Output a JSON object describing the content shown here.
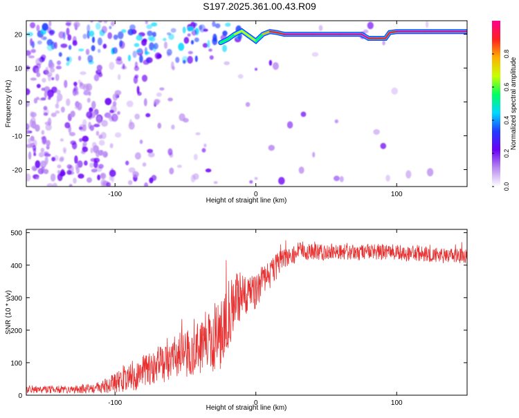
{
  "title": "S197.2025.361.00.43.R09",
  "chart_data": [
    {
      "type": "heatmap",
      "name": "spectrogram",
      "xlabel": "Height of straight line (km)",
      "ylabel": "Frequency (Hz)",
      "xlim": [
        -163,
        150
      ],
      "ylim": [
        -25,
        24
      ],
      "xticks": [
        -100,
        0,
        100
      ],
      "xtick_labels": [
        "-100",
        "0",
        "100"
      ],
      "yticks": [
        -20,
        -10,
        0,
        10,
        20
      ],
      "ytick_labels": [
        "-20",
        "-10",
        "0",
        "10",
        "20"
      ],
      "colorbar": {
        "label": "Normalized spectral amplitude",
        "range": [
          0,
          1
        ],
        "ticks": [
          0,
          0.2,
          0.4,
          0.6,
          0.8
        ],
        "tick_labels": [
          "0.0",
          "0.2",
          "0.4",
          "0.6",
          "0.8"
        ],
        "colors": [
          "#ffffff",
          "#b98bf0",
          "#6a00f5",
          "#1f3cff",
          "#00d8ff",
          "#00ff60",
          "#c8ff00",
          "#ffb000",
          "#ff2020",
          "#ff0090"
        ]
      },
      "carrier_trace": {
        "x": [
          -50,
          -40,
          -30,
          -25,
          -20,
          -15,
          -10,
          -5,
          0,
          5,
          10,
          15,
          20,
          40,
          60,
          75,
          80,
          85,
          92,
          95,
          100,
          120,
          140,
          150
        ],
        "y": [
          16,
          16.5,
          17,
          17.5,
          18.5,
          20,
          21,
          19.5,
          18,
          20,
          20.8,
          20.5,
          20,
          20,
          20,
          20,
          18.8,
          18.8,
          18.8,
          20.5,
          20.8,
          20.8,
          20.8,
          20.8
        ],
        "amplitude": [
          0.45,
          0.5,
          0.5,
          0.55,
          0.6,
          0.65,
          0.7,
          0.65,
          0.6,
          0.75,
          0.85,
          0.9,
          0.95,
          0.95,
          0.95,
          0.95,
          0.9,
          0.85,
          0.85,
          0.9,
          0.95,
          0.95,
          0.95,
          0.95
        ]
      }
    },
    {
      "type": "line",
      "name": "snr",
      "xlabel": "Height of straight line (km)",
      "ylabel": "SNR (10 * v/v)",
      "xlim": [
        -163,
        150
      ],
      "ylim": [
        0,
        510
      ],
      "xticks": [
        -100,
        0,
        100
      ],
      "xtick_labels": [
        "-100",
        "0",
        "100"
      ],
      "yticks": [
        0,
        100,
        200,
        300,
        400,
        500
      ],
      "ytick_labels": [
        "0",
        "100",
        "200",
        "300",
        "400",
        "500"
      ],
      "color": "#e83030",
      "series": [
        {
          "name": "SNR",
          "x": [
            -163,
            -150,
            -140,
            -130,
            -120,
            -110,
            -100,
            -90,
            -80,
            -70,
            -60,
            -50,
            -40,
            -30,
            -25,
            -20,
            -15,
            -10,
            -5,
            0,
            5,
            10,
            15,
            20,
            25,
            30,
            40,
            50,
            60,
            70,
            80,
            90,
            100,
            110,
            120,
            130,
            140,
            150
          ],
          "y": [
            18,
            18,
            18,
            18,
            20,
            24,
            38,
            55,
            75,
            90,
            110,
            130,
            145,
            165,
            190,
            240,
            290,
            310,
            300,
            320,
            350,
            370,
            400,
            420,
            430,
            440,
            440,
            440,
            440,
            440,
            440,
            440,
            440,
            435,
            435,
            430,
            430,
            430
          ],
          "noise_amplitude": [
            12,
            12,
            12,
            12,
            14,
            18,
            30,
            45,
            55,
            60,
            65,
            75,
            80,
            95,
            110,
            110,
            95,
            70,
            60,
            55,
            50,
            45,
            40,
            30,
            30,
            30,
            25,
            25,
            25,
            25,
            25,
            25,
            25,
            25,
            25,
            25,
            25,
            25
          ]
        }
      ]
    }
  ]
}
